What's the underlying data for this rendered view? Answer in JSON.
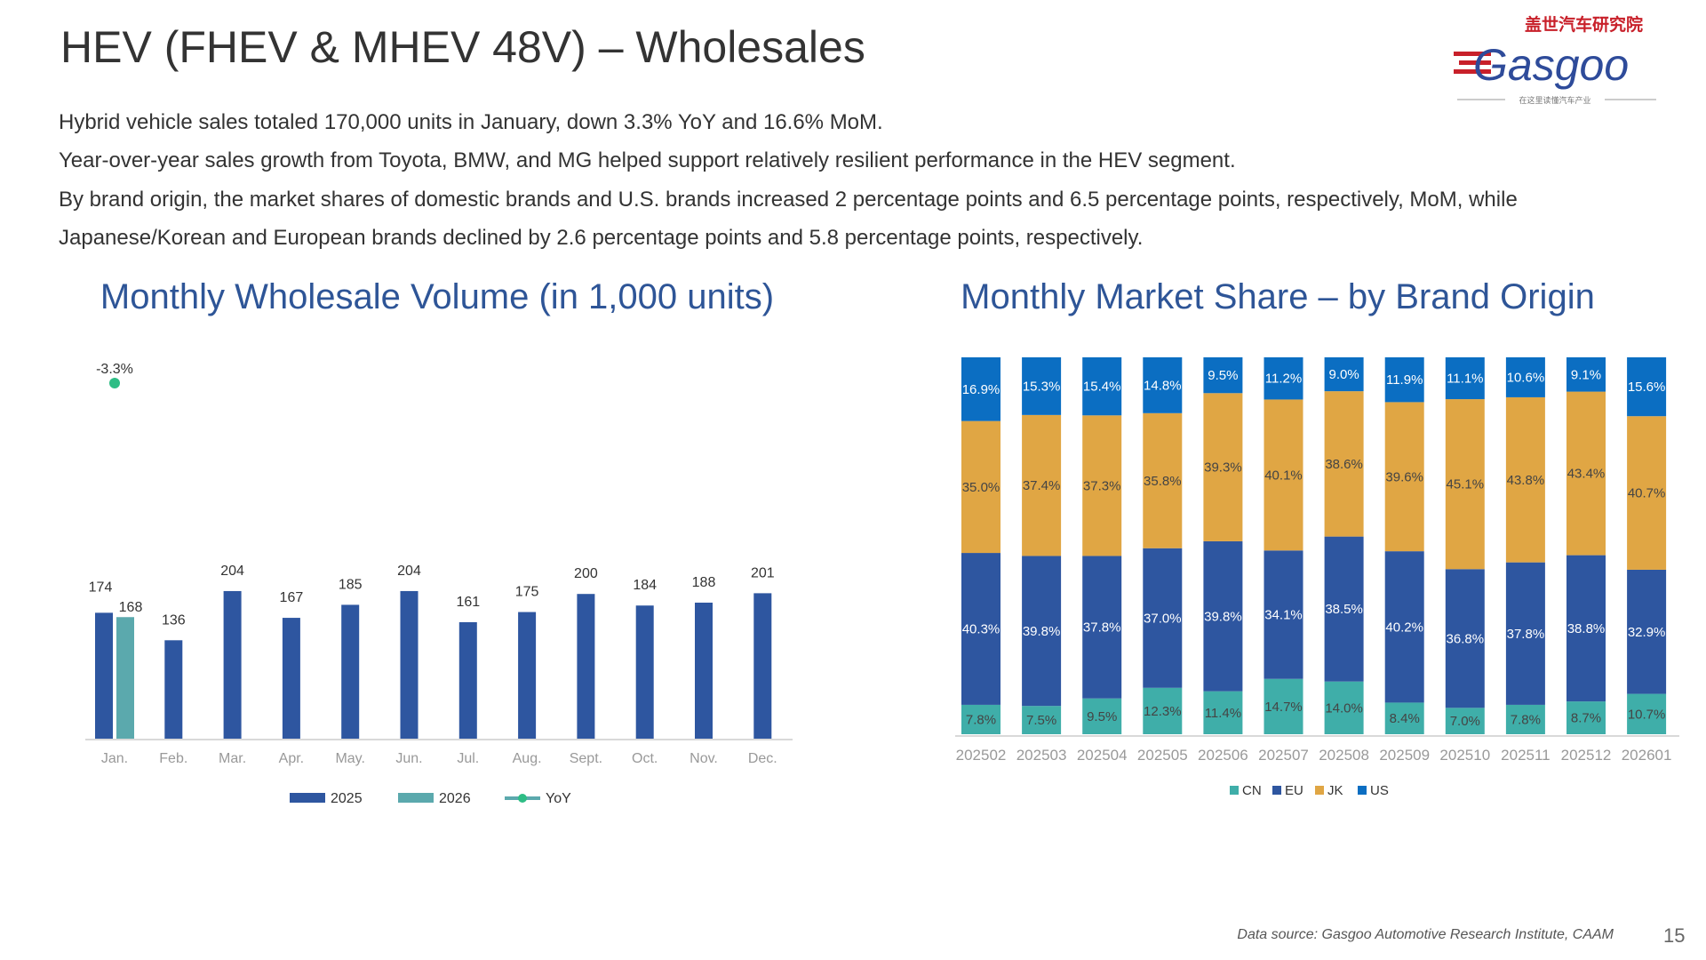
{
  "title": "HEV (FHEV & MHEV 48V) – Wholesales",
  "paragraphs": [
    "Hybrid vehicle sales totaled 170,000 units in January, down 3.3% YoY and 16.6% MoM.",
    "Year-over-year sales growth from Toyota, BMW, and MG helped support relatively resilient performance in the HEV segment.",
    "By brand origin, the market shares of domestic brands and U.S. brands increased 2 percentage points and 6.5 percentage points, respectively, MoM, while",
    "Japanese/Korean and European brands declined by 2.6 percentage points and 5.8 percentage points, respectively."
  ],
  "logo": {
    "text": "Gasgoo",
    "cn": "盖世汽车研究院",
    "tagline": "在这里读懂汽车产业"
  },
  "footer": {
    "source": "Data source: Gasgoo Automotive Research Institute, CAAM",
    "page": "15"
  },
  "chart_data": [
    {
      "type": "bar",
      "title": "Monthly Wholesale Volume (in 1,000 units)",
      "categories": [
        "Jan.",
        "Feb.",
        "Mar.",
        "Apr.",
        "May.",
        "Jun.",
        "Jul.",
        "Aug.",
        "Sept.",
        "Oct.",
        "Nov.",
        "Dec."
      ],
      "series": [
        {
          "name": "2025",
          "values": [
            174,
            136,
            204,
            167,
            185,
            204,
            161,
            175,
            200,
            184,
            188,
            201
          ],
          "color": "#2E56A0"
        },
        {
          "name": "2026",
          "values": [
            168,
            null,
            null,
            null,
            null,
            null,
            null,
            null,
            null,
            null,
            null,
            null
          ],
          "color": "#5BA9AD"
        },
        {
          "name": "YoY",
          "type": "line",
          "values": [
            -3.3,
            null,
            null,
            null,
            null,
            null,
            null,
            null,
            null,
            null,
            null,
            null
          ],
          "labels": [
            "-3.3%"
          ],
          "color": "#2EBD85"
        }
      ],
      "legend": "bottom",
      "grid": false
    },
    {
      "type": "bar",
      "stacked": true,
      "title": "Monthly Market Share – by Brand Origin",
      "categories": [
        "202502",
        "202503",
        "202504",
        "202505",
        "202506",
        "202507",
        "202508",
        "202509",
        "202510",
        "202511",
        "202512",
        "202601"
      ],
      "series": [
        {
          "name": "CN",
          "values": [
            7.8,
            7.5,
            9.5,
            12.3,
            11.4,
            14.7,
            14.0,
            8.4,
            7.0,
            7.8,
            8.7,
            10.7
          ],
          "color": "#3FAEA9"
        },
        {
          "name": "EU",
          "values": [
            40.3,
            39.8,
            37.8,
            37.0,
            39.8,
            34.1,
            38.5,
            40.2,
            36.8,
            37.8,
            38.8,
            32.9
          ],
          "color": "#2E56A0"
        },
        {
          "name": "JK",
          "values": [
            35.0,
            37.4,
            37.3,
            35.8,
            39.3,
            40.1,
            38.6,
            39.6,
            45.1,
            43.8,
            43.4,
            40.7
          ],
          "color": "#E0A644"
        },
        {
          "name": "US",
          "values": [
            16.9,
            15.3,
            15.4,
            14.8,
            9.5,
            11.2,
            9.0,
            11.9,
            11.1,
            10.6,
            9.1,
            15.6
          ],
          "color": "#0B6EC2"
        }
      ],
      "unit": "%",
      "legend": "bottom",
      "grid": false
    }
  ]
}
